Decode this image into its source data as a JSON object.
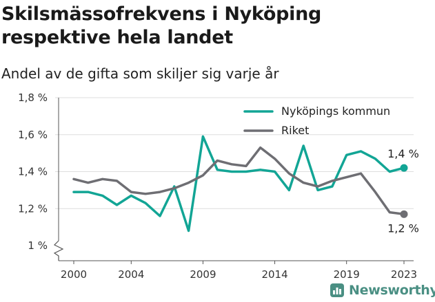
{
  "colors": {
    "nykoping": "#12a595",
    "riket": "#6e6e73",
    "axis": "#555555",
    "grid": "#dddddd",
    "brand": "#4a8f83"
  },
  "brand": {
    "text": "Newsworthy",
    "icon": "chart-logo-icon"
  },
  "chart_data": {
    "type": "line",
    "title": "Skilsmässofrekvens i Nyköping respektive hela landet",
    "subtitle": "Andel av de gifta som skiljer sig varje år",
    "xlabel": "",
    "ylabel": "",
    "x": [
      2000,
      2001,
      2002,
      2003,
      2004,
      2005,
      2006,
      2007,
      2008,
      2009,
      2010,
      2011,
      2012,
      2013,
      2014,
      2015,
      2016,
      2017,
      2018,
      2019,
      2020,
      2021,
      2022,
      2023
    ],
    "x_ticks": [
      2000,
      2004,
      2009,
      2014,
      2019,
      2023
    ],
    "x_tick_labels": [
      "2000",
      "2004",
      "2009",
      "2014",
      "2019",
      "2023"
    ],
    "ylim": [
      1.0,
      1.8
    ],
    "y_ticks": [
      1.0,
      1.2,
      1.4,
      1.6,
      1.8
    ],
    "y_tick_labels": [
      "1 %",
      "1,2 %",
      "1,4 %",
      "1,6 %",
      "1,8 %"
    ],
    "y_axis_break": true,
    "grid": true,
    "legend_position": "top-right",
    "series": [
      {
        "name": "Nyköpings kommun",
        "color": "#12a595",
        "values": [
          1.29,
          1.29,
          1.27,
          1.22,
          1.27,
          1.23,
          1.16,
          1.32,
          1.08,
          1.59,
          1.41,
          1.4,
          1.4,
          1.41,
          1.4,
          1.3,
          1.54,
          1.3,
          1.32,
          1.49,
          1.51,
          1.47,
          1.4,
          1.42
        ],
        "end_label": "1,4 %"
      },
      {
        "name": "Riket",
        "color": "#6e6e73",
        "values": [
          1.36,
          1.34,
          1.36,
          1.35,
          1.29,
          1.28,
          1.29,
          1.31,
          1.34,
          1.38,
          1.46,
          1.44,
          1.43,
          1.53,
          1.47,
          1.39,
          1.34,
          1.32,
          1.35,
          1.37,
          1.39,
          1.29,
          1.18,
          1.17
        ],
        "end_label": "1,2 %"
      }
    ]
  }
}
